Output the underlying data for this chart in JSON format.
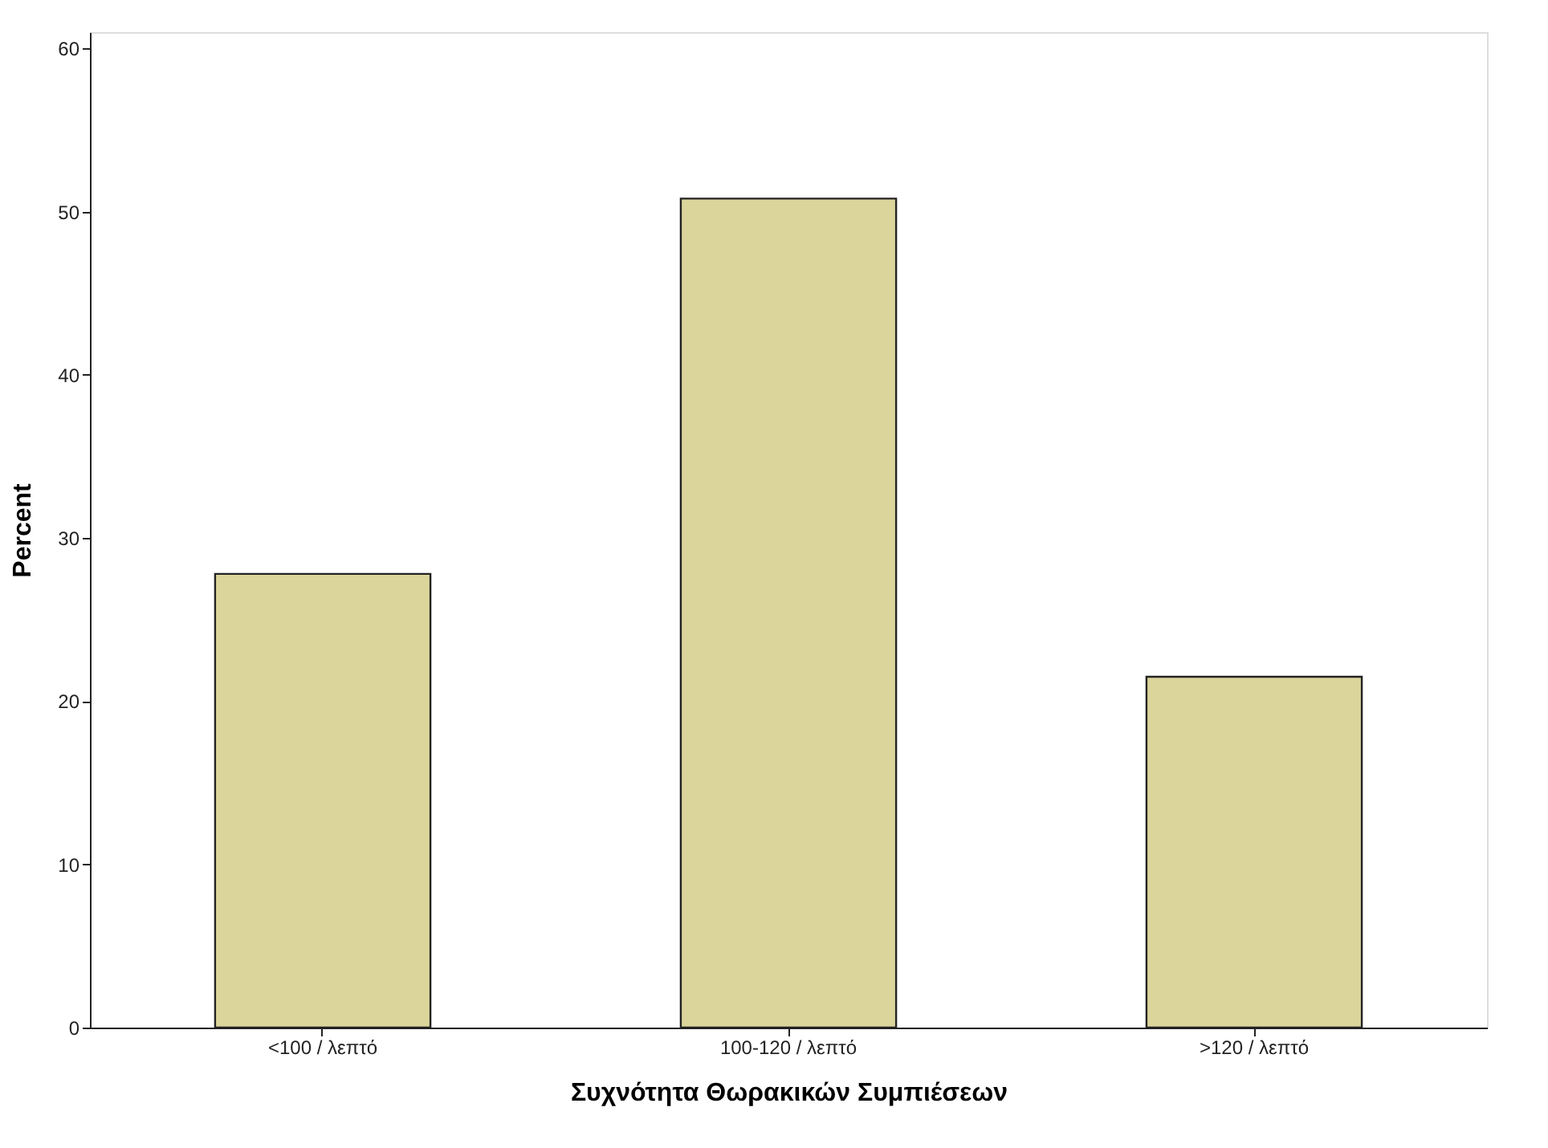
{
  "chart_data": {
    "type": "bar",
    "xlabel": "Συχνότητα Θωρακικών Συμπιέσεων",
    "ylabel": "Percent",
    "categories": [
      "<100 / λεπτό",
      "100-120 / λεπτό",
      ">120 / λεπτό"
    ],
    "values": [
      27.8,
      50.8,
      21.5
    ],
    "color": "#dbd59b",
    "ylim": [
      0,
      61
    ],
    "yticks": [
      0,
      10,
      20,
      30,
      40,
      50,
      60
    ],
    "grid": false
  }
}
